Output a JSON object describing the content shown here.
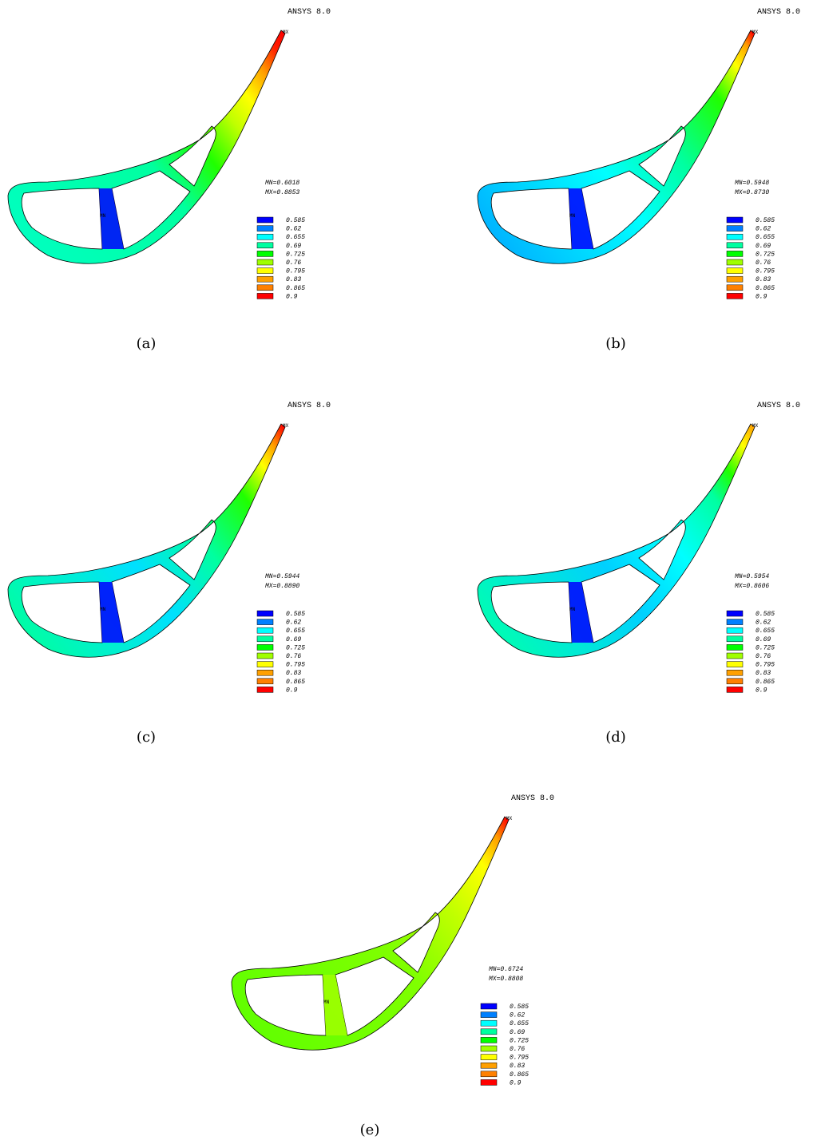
{
  "figure": {
    "legend": {
      "labels": [
        "0.585",
        "0.62",
        "0.655",
        "0.69",
        "0.725",
        "0.76",
        "0.795",
        "0.83",
        "0.865",
        "0.9"
      ],
      "colors": [
        "#0000ff",
        "#0080ff",
        "#00ffff",
        "#00ffa0",
        "#00ff00",
        "#a0ff00",
        "#ffff00",
        "#ffa000",
        "#ff8000",
        "#ff0000"
      ]
    },
    "panels": [
      {
        "program": "ANSYS 8.0",
        "max_marker": "MX",
        "min_marker": "MN",
        "min_text": "MN=0.6018",
        "max_text": "MX=0.8853",
        "caption": "(a)"
      },
      {
        "program": "ANSYS 8.0",
        "max_marker": "MX",
        "min_marker": "MN",
        "min_text": "MN=0.5948",
        "max_text": "MX=0.8730",
        "caption": "(b)"
      },
      {
        "program": "ANSYS 8.0",
        "max_marker": "MX",
        "min_marker": "MN",
        "min_text": "MN=0.5944",
        "max_text": "MX=0.8890",
        "caption": "(c)"
      },
      {
        "program": "ANSYS 8.0",
        "max_marker": "MX",
        "min_marker": "MN",
        "min_text": "MN=0.5954",
        "max_text": "MX=0.8606",
        "caption": "(d)"
      },
      {
        "program": "ANSYS 8.0",
        "max_marker": "MX",
        "min_marker": "MN",
        "min_text": "MN=0.6724",
        "max_text": "MX=0.8808",
        "caption": "(e)"
      }
    ]
  }
}
